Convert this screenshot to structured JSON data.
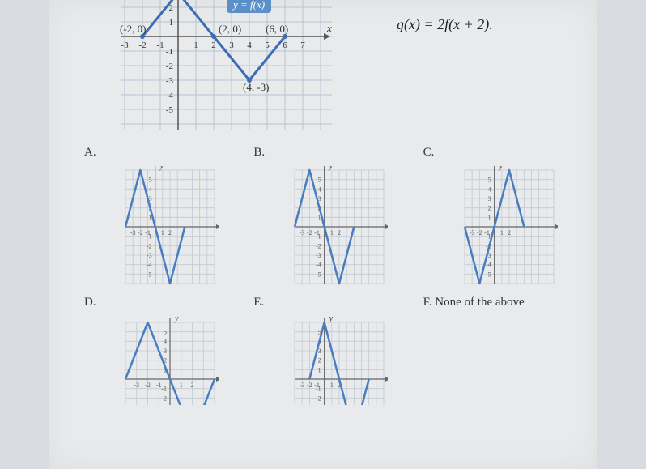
{
  "equation": "g(x) = 2f(x + 2).",
  "main_chart": {
    "function_label": "y = f(x)",
    "points_labels": {
      "p1": "(-2, 0)",
      "p2": "(2, 0)",
      "p3": "(6, 0)",
      "p4": "(4, -3)"
    },
    "axis_label_x": "x",
    "xticks": [
      -3,
      -2,
      -1,
      1,
      2,
      3,
      4,
      5,
      6,
      7
    ],
    "yticks": [
      -5,
      -4,
      -3,
      -2,
      -1,
      1,
      2
    ],
    "line_points": [
      [
        -2,
        0
      ],
      [
        0,
        3
      ],
      [
        2,
        0
      ],
      [
        4,
        -3
      ],
      [
        6,
        0
      ]
    ],
    "colors": {
      "grid": "#b8c4d0",
      "axis": "#555",
      "line": "#3b6db5",
      "callout_bg": "#5b8fc7",
      "point_fill": "#3b6db5"
    },
    "line_width": 3
  },
  "small_charts": {
    "common": {
      "xticks": [
        -3,
        -2,
        -1,
        1,
        2
      ],
      "yticks": [
        -5,
        -4,
        -3,
        -2,
        -1,
        1,
        2,
        3,
        4,
        5
      ],
      "axis_label_x": "x",
      "axis_label_y": "y",
      "colors": {
        "grid": "#c0cad4",
        "axis": "#666",
        "line": "#4a7dc0"
      },
      "line_width": 2.5
    },
    "A": {
      "label": "A.",
      "pts": [
        [
          -4,
          0
        ],
        [
          -2,
          6
        ],
        [
          0,
          0
        ],
        [
          2,
          -6
        ],
        [
          4,
          0
        ]
      ],
      "xrange": [
        -4,
        8
      ],
      "yrange": [
        -6,
        6
      ]
    },
    "B": {
      "label": "B.",
      "pts": [
        [
          -4,
          0
        ],
        [
          -2,
          6
        ],
        [
          0,
          0
        ],
        [
          2,
          -6
        ],
        [
          4,
          0
        ]
      ],
      "xrange": [
        -4,
        8
      ],
      "yrange": [
        -6,
        6
      ]
    },
    "C": {
      "label": "C.",
      "pts": [
        [
          -4,
          0
        ],
        [
          -2,
          -6
        ],
        [
          0,
          0
        ],
        [
          2,
          6
        ],
        [
          4,
          0
        ]
      ],
      "xrange": [
        -4,
        8
      ],
      "yrange": [
        -6,
        6
      ]
    },
    "D": {
      "label": "D.",
      "pts": [
        [
          -4,
          0
        ],
        [
          -2,
          6
        ],
        [
          0,
          0
        ],
        [
          2,
          -6
        ],
        [
          4,
          0
        ]
      ],
      "xrange": [
        -4,
        4
      ],
      "yrange": [
        -6,
        6
      ],
      "cut": true
    },
    "E": {
      "label": "E.",
      "pts": [
        [
          -2,
          0
        ],
        [
          0,
          6
        ],
        [
          2,
          0
        ],
        [
          4,
          -6
        ],
        [
          6,
          0
        ]
      ],
      "xrange": [
        -4,
        8
      ],
      "yrange": [
        -6,
        6
      ],
      "cut": true
    },
    "F": {
      "label": "F. None of the above",
      "none": true
    }
  }
}
